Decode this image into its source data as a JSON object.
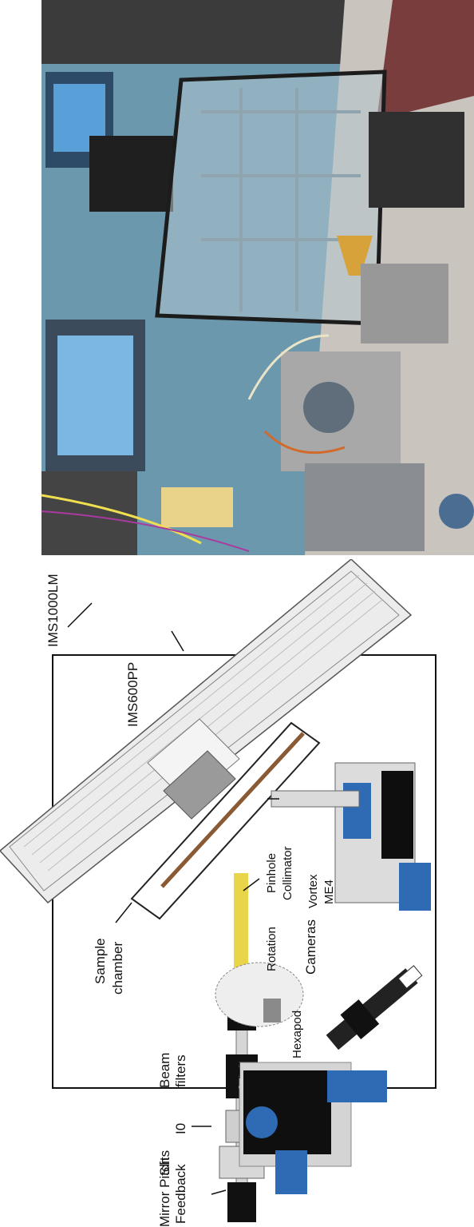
{
  "labels": {
    "ims1000lm": "IMS1000LM",
    "ims600pp": "IMS600PP",
    "sample_chamber_1": "Sample",
    "sample_chamber_2": "chamber",
    "pinhole": "Pinhole",
    "collimator": "Collimator",
    "rotation": "Rotation",
    "hexapod": "Hexapod",
    "beam_filters_1": "Beam",
    "beam_filters_2": "filters",
    "i0": "I0",
    "slits": "Slits",
    "mirror_1": "Mirror Pitch",
    "mirror_2": "Feedback",
    "cameras": "Cameras",
    "vortex_1": "Vortex",
    "vortex_2": "ME4"
  }
}
